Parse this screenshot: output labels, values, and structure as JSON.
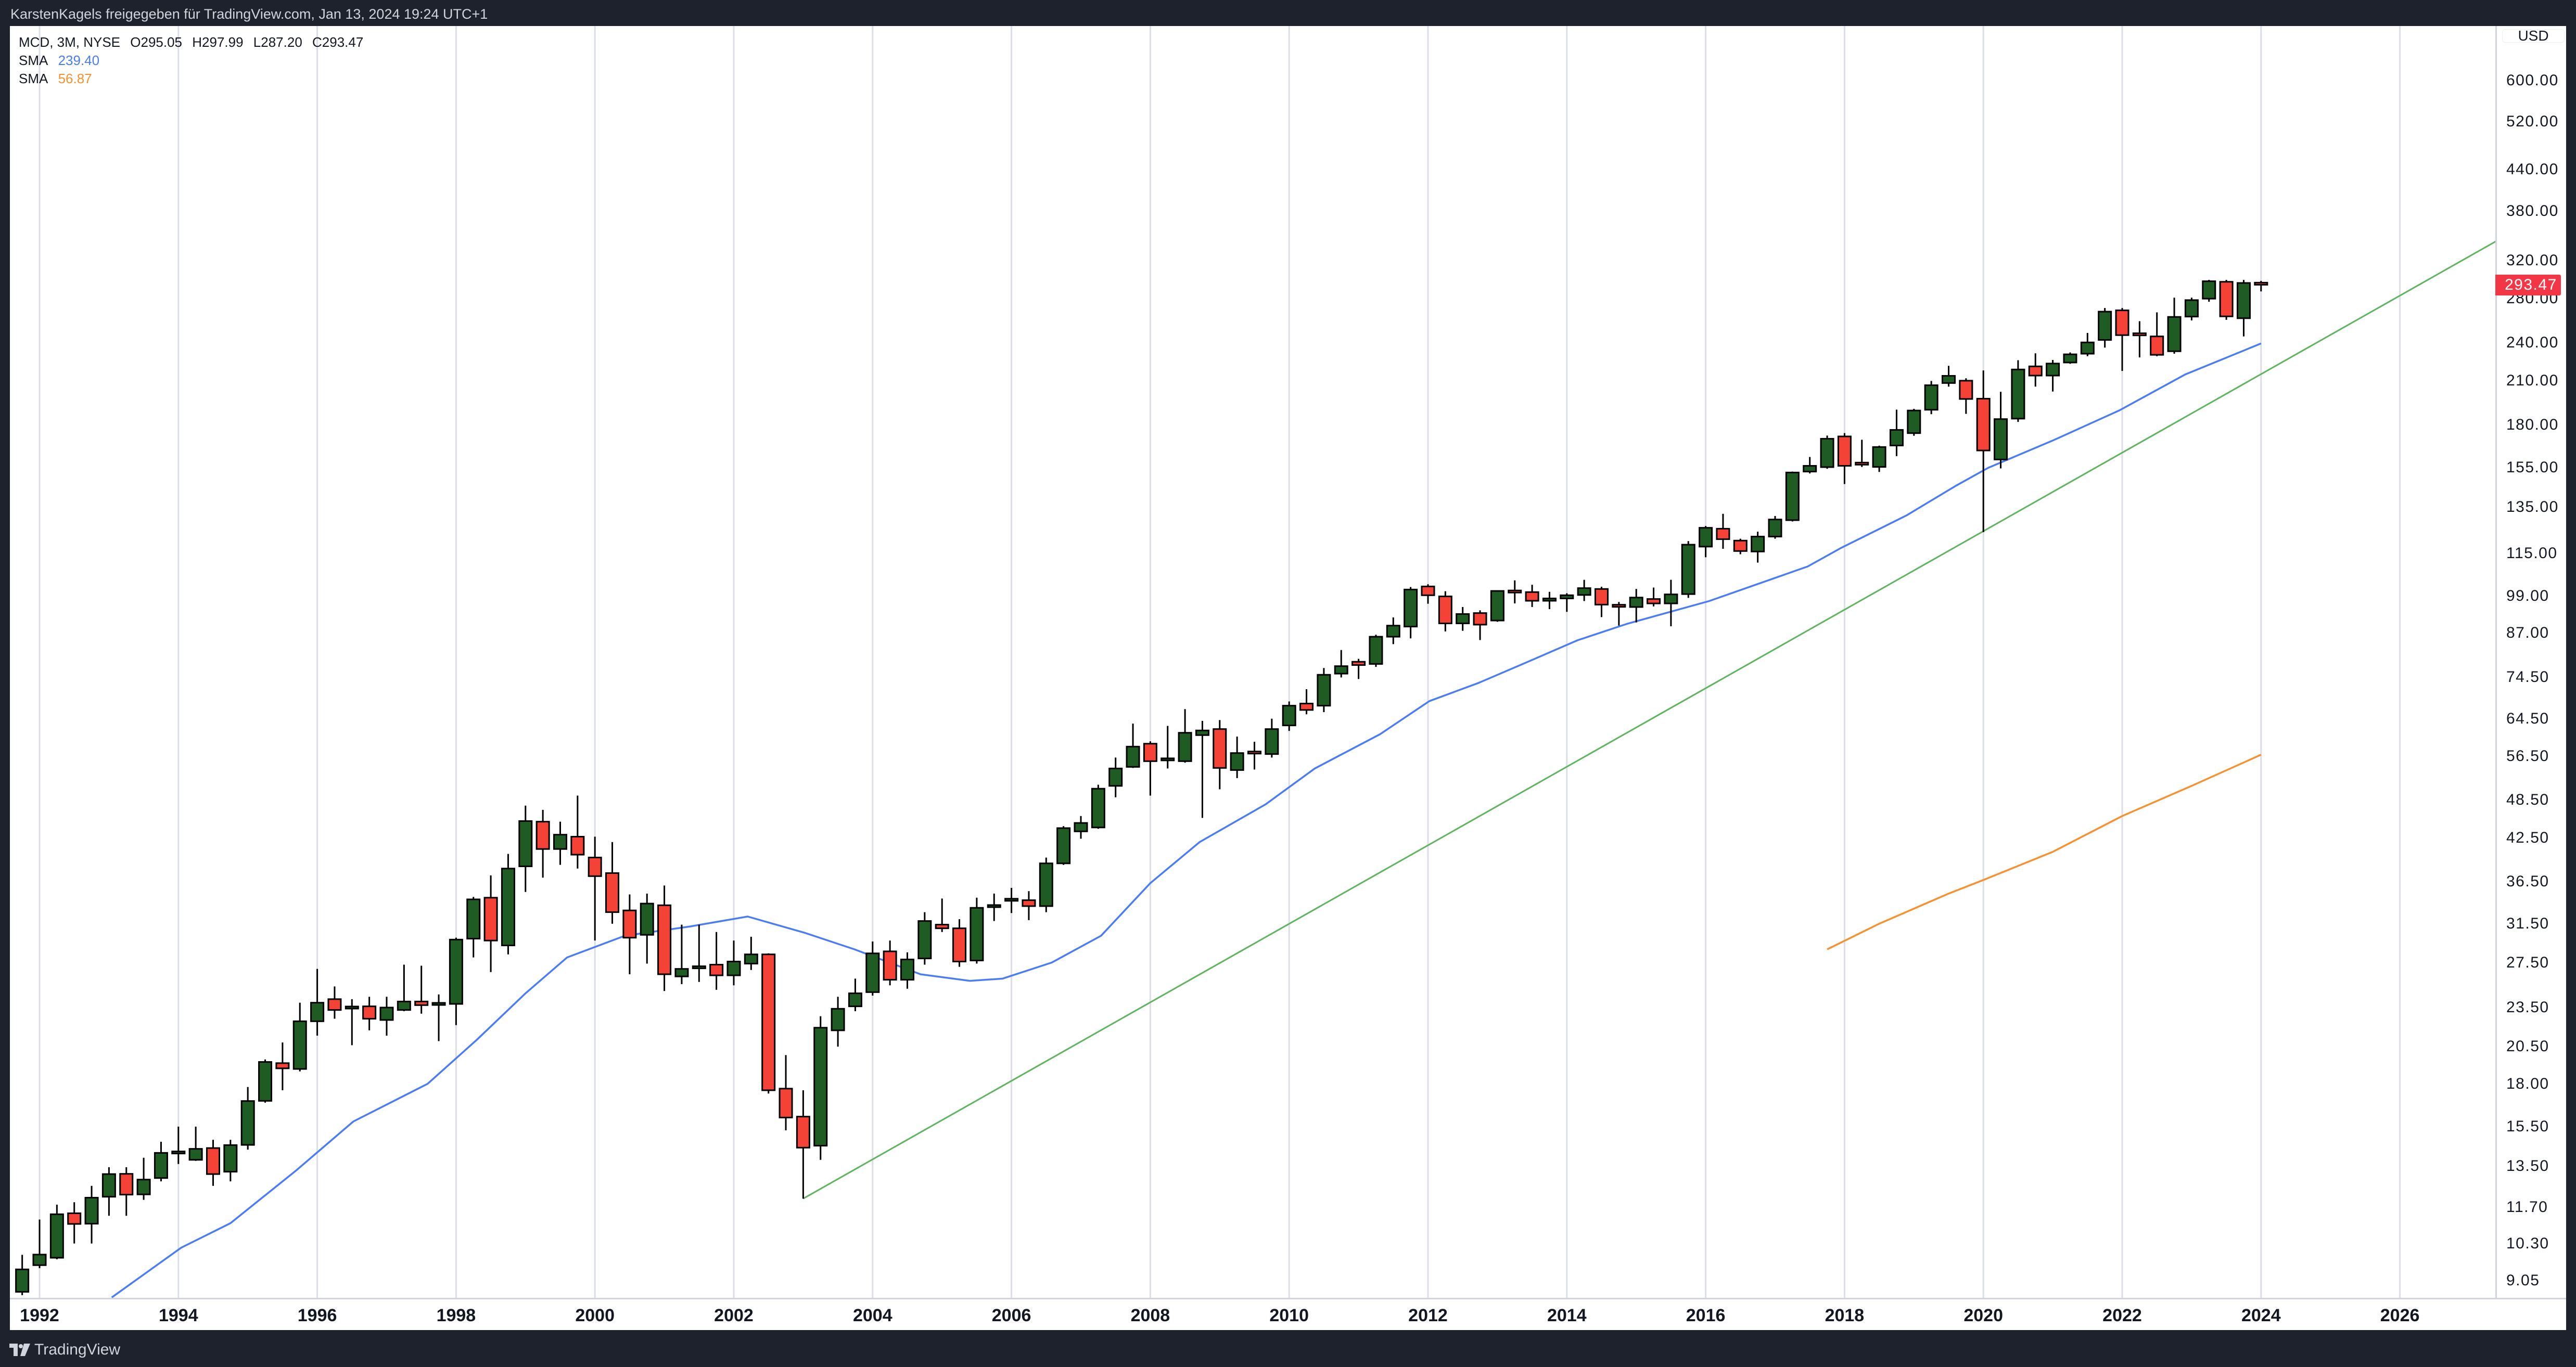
{
  "header": {
    "text": "KarstenKagels freigegeben für TradingView.com, Jan 13, 2024 19:24 UTC+1"
  },
  "legend": {
    "symbol": "MCD, 3M, NYSE",
    "open": "O295.05",
    "high": "H297.99",
    "low": "L287.20",
    "close": "C293.47",
    "sma1_label": "SMA",
    "sma1_value": "239.40",
    "sma2_label": "SMA",
    "sma2_value": "56.87"
  },
  "footer": {
    "brand": "TradingView"
  },
  "colors": {
    "up": "#1e5c24",
    "down": "#f44236",
    "sma1": "#4a7cf7",
    "sma2": "#f7902f",
    "trendline": "#5fb55f",
    "grid": "#dcdee6",
    "last_price": "#f23645"
  },
  "chart_data": {
    "type": "candlestick",
    "symbol": "MCD",
    "interval": "3M",
    "exchange": "NYSE",
    "currency": "USD",
    "y_scale": "log",
    "ylim": [
      8.53,
      726
    ],
    "xlim": [
      1991.57,
      2027.38
    ],
    "grid": "vertical",
    "last_price": "293.47",
    "price_ticks": [
      "600.00",
      "520.00",
      "440.00",
      "380.00",
      "320.00",
      "280.00",
      "240.00",
      "210.00",
      "180.00",
      "155.00",
      "135.00",
      "115.00",
      "99.00",
      "87.00",
      "74.50",
      "64.50",
      "56.50",
      "48.50",
      "42.50",
      "36.50",
      "31.50",
      "27.50",
      "23.50",
      "20.50",
      "18.00",
      "15.50",
      "13.50",
      "11.70",
      "10.30",
      "9.05"
    ],
    "year_ticks": [
      "1992",
      "1994",
      "1996",
      "1998",
      "2000",
      "2002",
      "2004",
      "2006",
      "2008",
      "2010",
      "2012",
      "2014",
      "2016",
      "2018",
      "2020",
      "2022",
      "2024",
      "2026"
    ],
    "candles_fields": [
      "quarter",
      "open",
      "high",
      "low",
      "close"
    ],
    "candles": [
      [
        "1991Q4",
        8.7,
        9.9,
        8.6,
        9.41
      ],
      [
        "1992Q1",
        9.55,
        11.2,
        9.45,
        9.91
      ],
      [
        "1992Q2",
        9.8,
        11.8,
        9.75,
        11.41
      ],
      [
        "1992Q3",
        11.45,
        11.9,
        10.3,
        11.03
      ],
      [
        "1992Q4",
        11.04,
        12.6,
        10.3,
        12.09
      ],
      [
        "1993Q1",
        12.13,
        13.45,
        11.35,
        13.13
      ],
      [
        "1993Q2",
        13.14,
        13.45,
        11.35,
        12.22
      ],
      [
        "1993Q3",
        12.23,
        13.9,
        12.0,
        12.88
      ],
      [
        "1993Q4",
        12.95,
        14.7,
        12.8,
        14.14
      ],
      [
        "1994Q1",
        14.1,
        15.5,
        13.6,
        14.16
      ],
      [
        "1994Q2",
        13.8,
        15.5,
        13.75,
        14.34
      ],
      [
        "1994Q3",
        14.38,
        14.8,
        12.6,
        13.13
      ],
      [
        "1994Q4",
        13.24,
        14.8,
        12.8,
        14.53
      ],
      [
        "1995Q1",
        14.54,
        17.8,
        14.3,
        16.95
      ],
      [
        "1995Q2",
        16.96,
        19.6,
        16.85,
        19.43
      ],
      [
        "1995Q3",
        19.35,
        20.8,
        17.6,
        19.0
      ],
      [
        "1995Q4",
        18.96,
        23.9,
        18.8,
        22.4
      ],
      [
        "1996Q1",
        22.4,
        26.9,
        21.3,
        23.9
      ],
      [
        "1996Q2",
        24.2,
        25.3,
        22.6,
        23.3
      ],
      [
        "1996Q3",
        23.45,
        24.2,
        20.6,
        23.5
      ],
      [
        "1996Q4",
        23.6,
        24.4,
        21.7,
        22.6
      ],
      [
        "1997Q1",
        22.5,
        24.4,
        21.3,
        23.5
      ],
      [
        "1997Q2",
        23.3,
        27.3,
        23.2,
        24.0
      ],
      [
        "1997Q3",
        24.0,
        27.2,
        23.0,
        23.7
      ],
      [
        "1997Q4",
        23.75,
        24.6,
        20.9,
        23.8
      ],
      [
        "1998Q1",
        23.8,
        30.0,
        22.1,
        29.8
      ],
      [
        "1998Q2",
        29.9,
        34.6,
        28.0,
        34.3
      ],
      [
        "1998Q3",
        34.5,
        37.3,
        26.6,
        29.7
      ],
      [
        "1998Q4",
        29.2,
        40.2,
        28.3,
        38.2
      ],
      [
        "1999Q1",
        38.5,
        47.6,
        35.2,
        45.1
      ],
      [
        "1999Q2",
        45.0,
        46.9,
        37.0,
        40.9
      ],
      [
        "1999Q3",
        40.9,
        45.0,
        38.7,
        43.0
      ],
      [
        "1999Q4",
        42.7,
        49.3,
        38.2,
        40.1
      ],
      [
        "2000Q1",
        39.7,
        42.7,
        29.7,
        37.2
      ],
      [
        "2000Q2",
        37.6,
        41.9,
        31.5,
        32.8
      ],
      [
        "2000Q3",
        33.0,
        34.9,
        26.4,
        30.0
      ],
      [
        "2000Q4",
        30.3,
        35.0,
        27.4,
        33.8
      ],
      [
        "2001Q1",
        33.6,
        36.0,
        24.9,
        26.4
      ],
      [
        "2001Q2",
        26.2,
        31.4,
        25.5,
        26.9
      ],
      [
        "2001Q3",
        26.95,
        31.4,
        25.7,
        27.05
      ],
      [
        "2001Q4",
        27.3,
        30.6,
        25.0,
        26.3
      ],
      [
        "2002Q1",
        26.3,
        29.7,
        25.4,
        27.6
      ],
      [
        "2002Q2",
        27.4,
        30.1,
        26.8,
        28.3
      ],
      [
        "2002Q3",
        28.3,
        28.4,
        17.4,
        17.6
      ],
      [
        "2002Q4",
        17.7,
        19.9,
        15.3,
        16.0
      ],
      [
        "2003Q1",
        16.05,
        17.6,
        12.05,
        14.4
      ],
      [
        "2003Q2",
        14.5,
        22.8,
        13.8,
        21.9
      ],
      [
        "2003Q3",
        21.7,
        24.4,
        20.5,
        23.4
      ],
      [
        "2003Q4",
        23.6,
        26.0,
        23.2,
        24.7
      ],
      [
        "2004Q1",
        24.8,
        29.6,
        24.5,
        28.4
      ],
      [
        "2004Q2",
        28.6,
        29.7,
        25.4,
        25.9
      ],
      [
        "2004Q3",
        25.9,
        28.5,
        25.1,
        27.8
      ],
      [
        "2004Q4",
        27.9,
        32.8,
        27.3,
        31.8
      ],
      [
        "2005Q1",
        31.4,
        34.4,
        30.6,
        31.0
      ],
      [
        "2005Q2",
        31.0,
        32.0,
        27.1,
        27.6
      ],
      [
        "2005Q3",
        27.7,
        34.5,
        27.4,
        33.3
      ],
      [
        "2005Q4",
        33.3,
        35.0,
        31.8,
        33.5
      ],
      [
        "2006Q1",
        34.15,
        35.7,
        32.7,
        34.25
      ],
      [
        "2006Q2",
        34.2,
        35.3,
        31.9,
        33.5
      ],
      [
        "2006Q3",
        33.5,
        39.7,
        32.8,
        38.9
      ],
      [
        "2006Q4",
        38.9,
        44.3,
        38.7,
        44.0
      ],
      [
        "2007Q1",
        43.5,
        45.9,
        42.4,
        44.8
      ],
      [
        "2007Q2",
        44.1,
        51.2,
        43.9,
        50.5
      ],
      [
        "2007Q3",
        51.0,
        56.3,
        49.0,
        54.2
      ],
      [
        "2007Q4",
        54.5,
        63.4,
        54.3,
        58.5
      ],
      [
        "2008Q1",
        59.1,
        59.6,
        49.3,
        55.6
      ],
      [
        "2008Q2",
        55.85,
        62.9,
        54.2,
        55.95
      ],
      [
        "2008Q3",
        55.6,
        66.7,
        55.3,
        61.4
      ],
      [
        "2008Q4",
        60.9,
        64.0,
        45.6,
        61.9
      ],
      [
        "2009Q1",
        62.2,
        64.2,
        50.4,
        54.3
      ],
      [
        "2009Q2",
        53.9,
        60.6,
        52.4,
        57.2
      ],
      [
        "2009Q3",
        57.3,
        59.5,
        54.0,
        57.0
      ],
      [
        "2009Q4",
        57.0,
        64.5,
        56.3,
        62.2
      ],
      [
        "2010Q1",
        63.0,
        68.5,
        61.8,
        67.5
      ],
      [
        "2010Q2",
        68.0,
        71.5,
        65.5,
        66.5
      ],
      [
        "2010Q3",
        67.5,
        77.0,
        66.0,
        75.2
      ],
      [
        "2010Q4",
        75.5,
        82.0,
        74.5,
        77.5
      ],
      [
        "2011Q1",
        78.7,
        79.5,
        74.1,
        77.8
      ],
      [
        "2011Q2",
        78.1,
        86.5,
        77.3,
        85.9
      ],
      [
        "2011Q3",
        85.9,
        91.9,
        83.7,
        89.3
      ],
      [
        "2011Q4",
        89.0,
        102.2,
        85.4,
        101.3
      ],
      [
        "2012Q1",
        102.4,
        103.2,
        96.4,
        99.3
      ],
      [
        "2012Q2",
        98.9,
        100.7,
        87.5,
        90.0
      ],
      [
        "2012Q3",
        90.0,
        95.3,
        87.7,
        93.0
      ],
      [
        "2012Q4",
        93.3,
        94.2,
        84.9,
        89.6
      ],
      [
        "2013Q1",
        90.9,
        100.9,
        90.5,
        100.8
      ],
      [
        "2013Q2",
        100.6,
        104.6,
        96.5,
        100.3
      ],
      [
        "2013Q3",
        100.4,
        103.0,
        95.3,
        97.4
      ],
      [
        "2013Q4",
        97.4,
        100.5,
        94.6,
        98.2
      ],
      [
        "2014Q1",
        98.2,
        100.0,
        93.7,
        99.3
      ],
      [
        "2014Q2",
        99.4,
        104.8,
        97.3,
        101.8
      ],
      [
        "2014Q3",
        101.5,
        102.3,
        92.0,
        96.1
      ],
      [
        "2014Q4",
        95.7,
        97.0,
        89.3,
        95.1
      ],
      [
        "2015Q1",
        95.3,
        101.5,
        90.3,
        98.5
      ],
      [
        "2015Q2",
        98.0,
        102.0,
        95.5,
        96.5
      ],
      [
        "2015Q3",
        96.5,
        104.8,
        89.1,
        99.6
      ],
      [
        "2015Q4",
        99.7,
        120.0,
        98.4,
        118.5
      ],
      [
        "2016Q1",
        117.7,
        126.5,
        113.4,
        125.7
      ],
      [
        "2016Q2",
        125.3,
        132.0,
        116.8,
        120.8
      ],
      [
        "2016Q3",
        120.2,
        121.0,
        114.6,
        115.9
      ],
      [
        "2016Q4",
        115.7,
        124.0,
        111.3,
        121.9
      ],
      [
        "2017Q1",
        121.9,
        131.0,
        121.0,
        129.4
      ],
      [
        "2017Q2",
        129.1,
        153.0,
        128.5,
        152.5
      ],
      [
        "2017Q3",
        153.0,
        161.0,
        152.0,
        156.1
      ],
      [
        "2017Q4",
        155.4,
        173.5,
        154.5,
        171.6
      ],
      [
        "2018Q1",
        173.0,
        175.0,
        146.5,
        156.1
      ],
      [
        "2018Q2",
        157.3,
        171.0,
        155.5,
        156.2
      ],
      [
        "2018Q3",
        155.5,
        167.5,
        152.8,
        166.7
      ],
      [
        "2018Q4",
        167.6,
        190.0,
        161.5,
        177.0
      ],
      [
        "2019Q1",
        175.0,
        190.5,
        173.4,
        189.4
      ],
      [
        "2019Q2",
        189.9,
        210.0,
        187.0,
        206.9
      ],
      [
        "2019Q3",
        208.5,
        221.4,
        205.9,
        213.8
      ],
      [
        "2019Q4",
        210.2,
        212.0,
        187.2,
        197.2
      ],
      [
        "2020Q1",
        197.4,
        217.9,
        123.8,
        164.7
      ],
      [
        "2020Q2",
        159.6,
        202.2,
        154.7,
        183.8
      ],
      [
        "2020Q3",
        184.1,
        225.8,
        182.0,
        218.6
      ],
      [
        "2020Q4",
        221.0,
        231.3,
        205.9,
        214.0
      ],
      [
        "2021Q1",
        214.0,
        226.0,
        202.4,
        223.2
      ],
      [
        "2021Q2",
        224.0,
        232.0,
        223.0,
        230.5
      ],
      [
        "2021Q3",
        231.0,
        248.4,
        229.0,
        240.3
      ],
      [
        "2021Q4",
        242.4,
        271.0,
        236.0,
        267.6
      ],
      [
        "2022Q1",
        268.8,
        271.0,
        217.5,
        246.5
      ],
      [
        "2022Q2",
        247.2,
        258.8,
        228.0,
        246.6
      ],
      [
        "2022Q3",
        245.4,
        266.9,
        229.0,
        230.1
      ],
      [
        "2022Q4",
        233.0,
        281.0,
        231.0,
        262.7
      ],
      [
        "2023Q1",
        263.0,
        281.0,
        259.5,
        278.6
      ],
      [
        "2023Q2",
        280.0,
        299.0,
        277.0,
        297.6
      ],
      [
        "2023Q3",
        297.0,
        299.0,
        260.0,
        263.2
      ],
      [
        "2023Q4",
        261.5,
        299.0,
        245.4,
        295.8
      ],
      [
        "2024Q1",
        295.05,
        297.99,
        287.2,
        293.47
      ]
    ],
    "series": [
      {
        "name": "SMA",
        "value": "239.40",
        "points": [
          [
            1993.04,
            8.53
          ],
          [
            1994.04,
            10.15
          ],
          [
            1994.75,
            11.06
          ],
          [
            1995.69,
            13.28
          ],
          [
            1996.52,
            15.78
          ],
          [
            1997.59,
            18.0
          ],
          [
            1998.3,
            21.0
          ],
          [
            1999.0,
            24.7
          ],
          [
            1999.6,
            28.0
          ],
          [
            2000.43,
            30.2
          ],
          [
            2001.37,
            31.2
          ],
          [
            2002.2,
            32.3
          ],
          [
            2003.03,
            30.5
          ],
          [
            2003.74,
            28.8
          ],
          [
            2004.69,
            26.4
          ],
          [
            2005.4,
            25.8
          ],
          [
            2005.87,
            26.0
          ],
          [
            2006.58,
            27.5
          ],
          [
            2007.29,
            30.2
          ],
          [
            2008.0,
            36.3
          ],
          [
            2008.71,
            41.9
          ],
          [
            2009.66,
            47.8
          ],
          [
            2010.37,
            54.2
          ],
          [
            2011.31,
            61.1
          ],
          [
            2012.02,
            68.6
          ],
          [
            2012.73,
            73.1
          ],
          [
            2013.44,
            78.7
          ],
          [
            2014.15,
            84.8
          ],
          [
            2014.86,
            89.8
          ],
          [
            2016.05,
            97.3
          ],
          [
            2017.47,
            109.8
          ],
          [
            2017.94,
            117.0
          ],
          [
            2018.89,
            131.2
          ],
          [
            2019.6,
            145.5
          ],
          [
            2020.07,
            155.0
          ],
          [
            2021.02,
            170.9
          ],
          [
            2021.96,
            189.5
          ],
          [
            2022.91,
            214.9
          ],
          [
            2024.0,
            239.4
          ]
        ]
      },
      {
        "name": "SMA",
        "value": "56.87",
        "points": [
          [
            2017.75,
            28.8
          ],
          [
            2018.5,
            31.5
          ],
          [
            2019.5,
            35.0
          ],
          [
            2020.0,
            36.7
          ],
          [
            2021.0,
            40.5
          ],
          [
            2022.0,
            45.9
          ],
          [
            2023.0,
            51.0
          ],
          [
            2024.0,
            56.87
          ]
        ]
      }
    ],
    "trendline": {
      "points": [
        [
          2003.0,
          12.05
        ],
        [
          2027.38,
          342
        ]
      ]
    }
  }
}
